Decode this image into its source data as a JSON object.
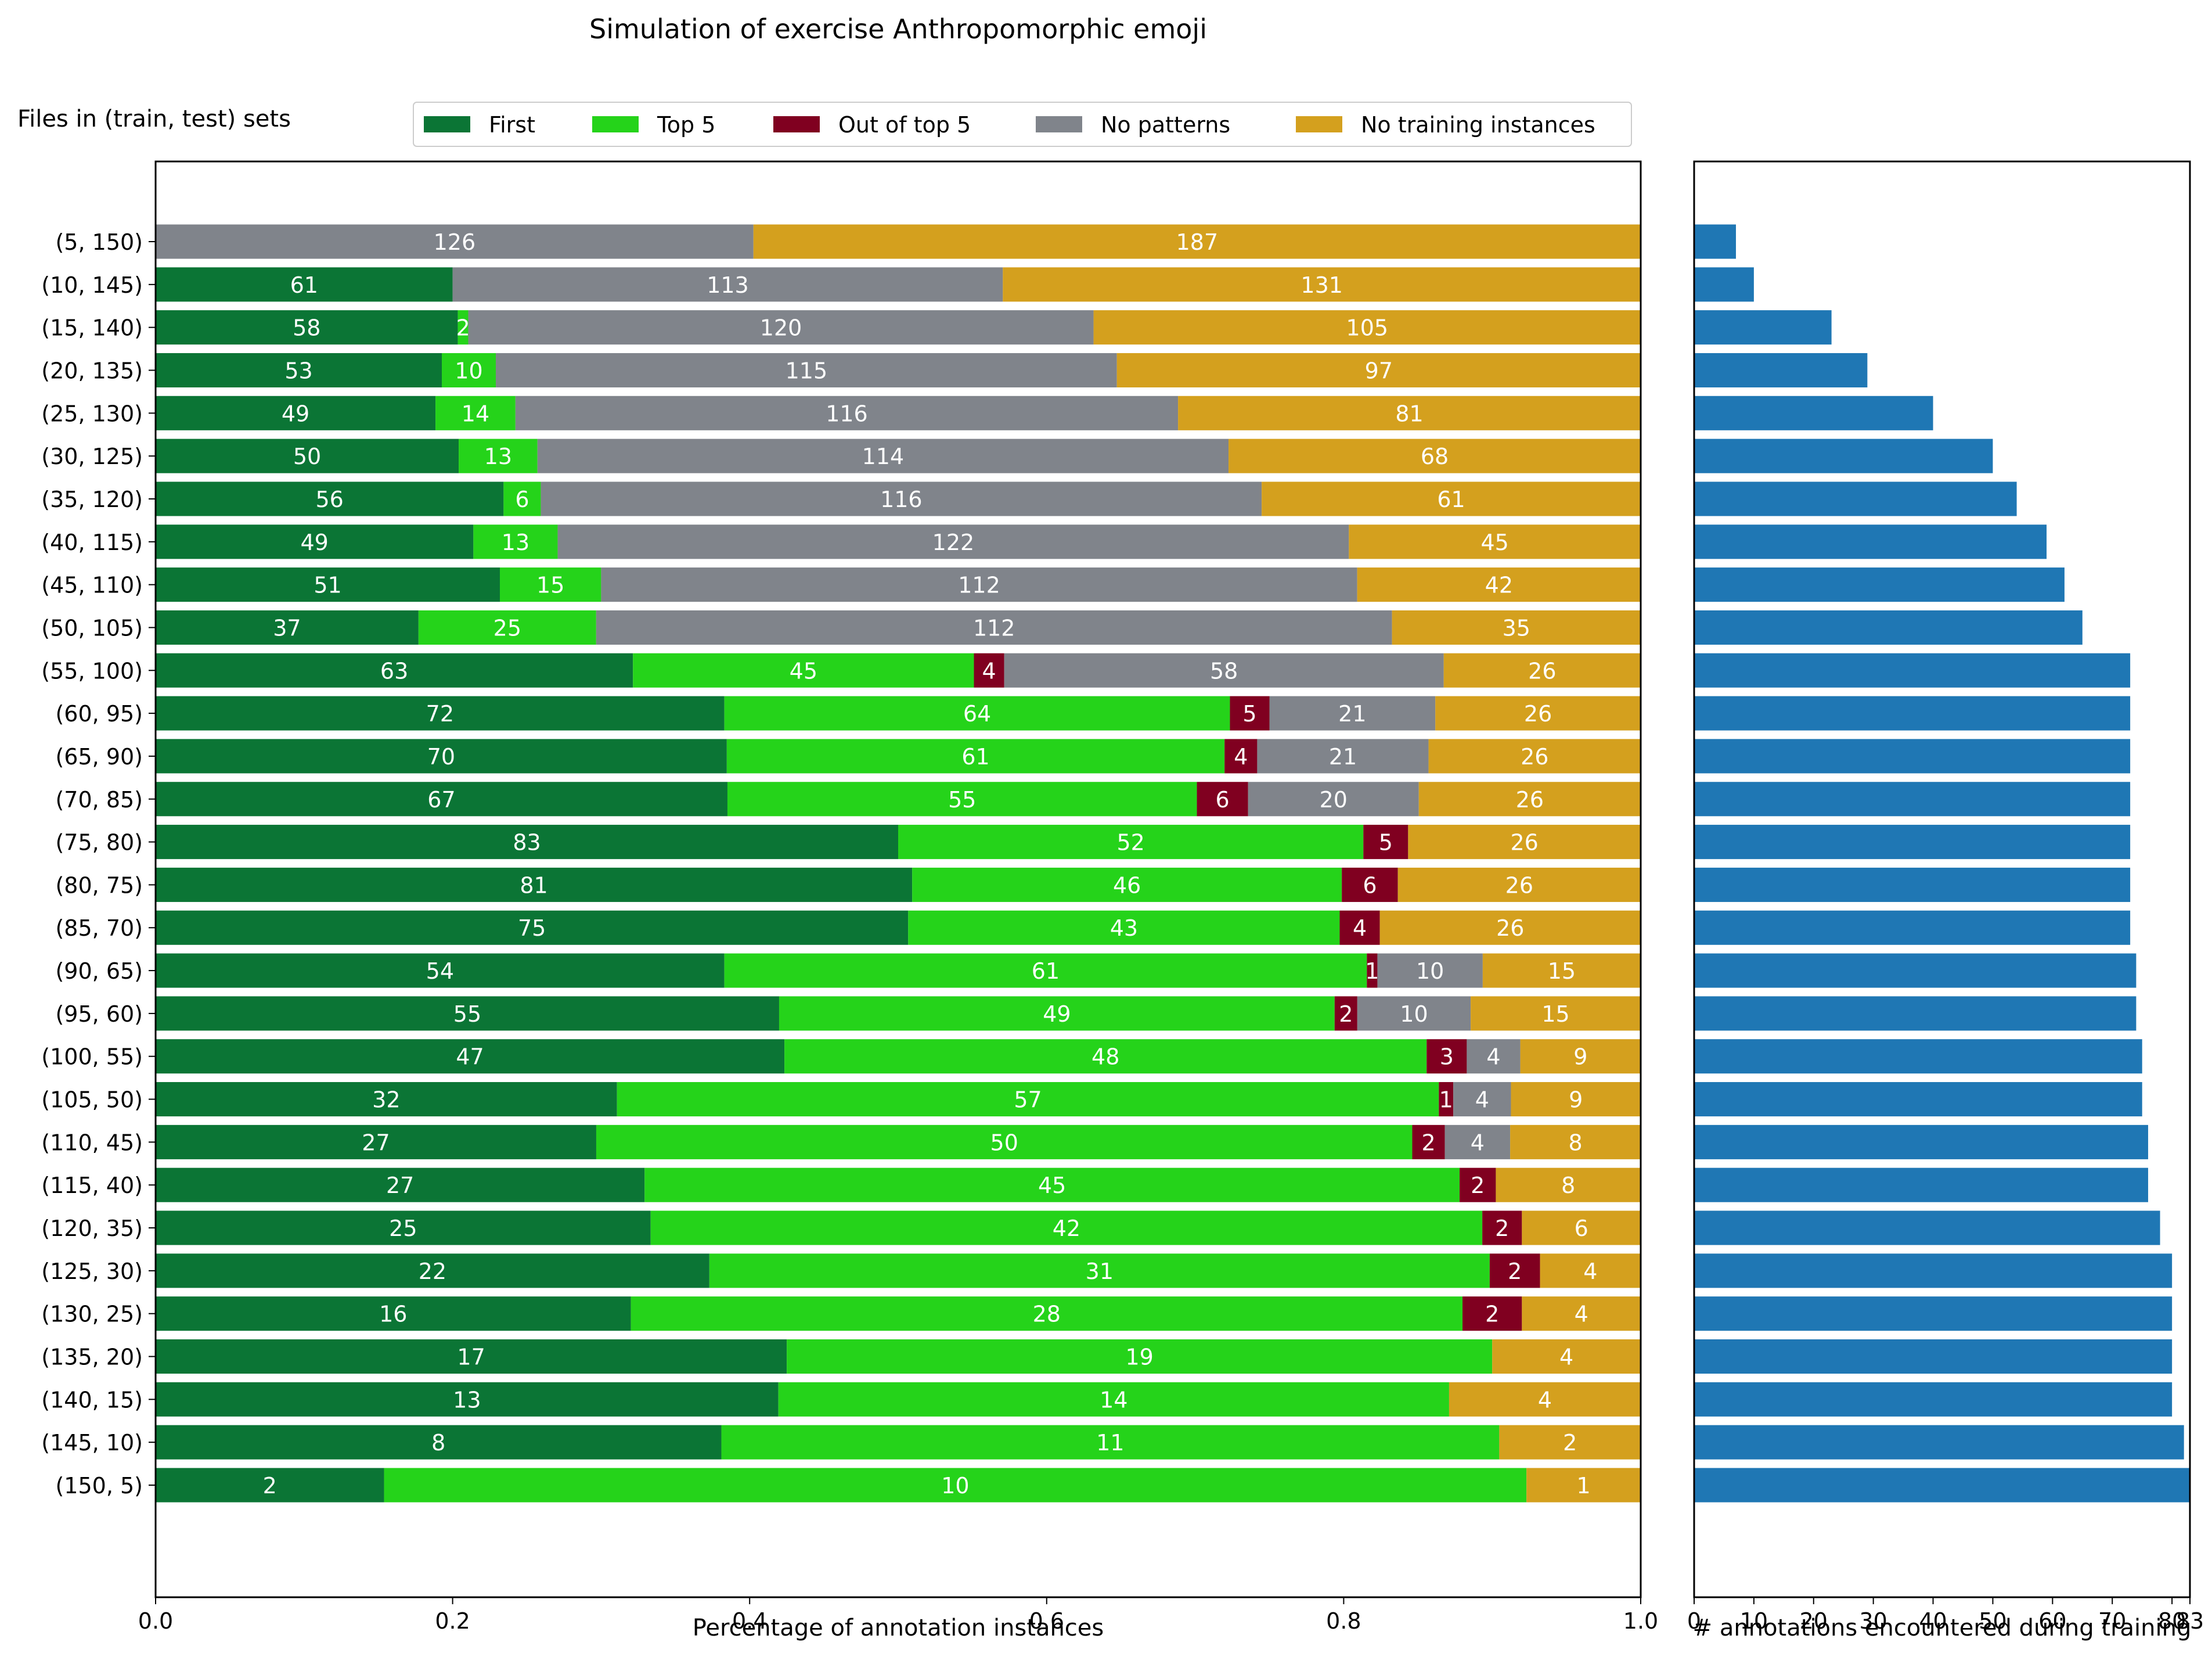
{
  "chart_data": [
    {
      "type": "bar",
      "orientation": "horizontal",
      "stacked": true,
      "normalized": true,
      "title": "Simulation of exercise Anthropomorphic emoji",
      "row_header": "Files in (train, test) sets",
      "xlabel": "Percentage of annotation instances",
      "ylabel": "",
      "xlim": [
        0,
        1
      ],
      "xticks": [
        "0.0",
        "0.2",
        "0.4",
        "0.6",
        "0.8",
        "1.0"
      ],
      "grid": false,
      "legend_position": "top",
      "categories": [
        "(5, 150)",
        "(10, 145)",
        "(15, 140)",
        "(20, 135)",
        "(25, 130)",
        "(30, 125)",
        "(35, 120)",
        "(40, 115)",
        "(45, 110)",
        "(50, 105)",
        "(55, 100)",
        "(60, 95)",
        "(65, 90)",
        "(70, 85)",
        "(75, 80)",
        "(80, 75)",
        "(85, 70)",
        "(90, 65)",
        "(95, 60)",
        "(100, 55)",
        "(105, 50)",
        "(110, 45)",
        "(115, 40)",
        "(120, 35)",
        "(125, 30)",
        "(130, 25)",
        "(135, 20)",
        "(140, 15)",
        "(145, 10)",
        "(150, 5)"
      ],
      "series": [
        {
          "name": "First",
          "color": "#0b7535",
          "values": [
            0,
            61,
            58,
            53,
            49,
            50,
            56,
            49,
            51,
            37,
            63,
            72,
            70,
            67,
            83,
            81,
            75,
            54,
            55,
            47,
            32,
            27,
            27,
            25,
            22,
            16,
            17,
            13,
            8,
            2
          ]
        },
        {
          "name": "Top 5",
          "color": "#25d31a",
          "values": [
            0,
            0,
            2,
            10,
            14,
            13,
            6,
            13,
            15,
            25,
            45,
            64,
            61,
            55,
            52,
            46,
            43,
            61,
            49,
            48,
            57,
            50,
            45,
            42,
            31,
            28,
            19,
            14,
            11,
            10
          ]
        },
        {
          "name": "Out of top 5",
          "color": "#800020",
          "values": [
            0,
            0,
            0,
            0,
            0,
            0,
            0,
            0,
            0,
            0,
            4,
            5,
            4,
            6,
            5,
            6,
            4,
            1,
            2,
            3,
            1,
            2,
            2,
            2,
            2,
            2,
            0,
            0,
            0,
            0
          ]
        },
        {
          "name": "No patterns",
          "color": "#80848b",
          "values": [
            126,
            113,
            120,
            115,
            116,
            114,
            116,
            122,
            112,
            112,
            58,
            21,
            21,
            20,
            0,
            0,
            0,
            10,
            10,
            4,
            4,
            4,
            0,
            0,
            0,
            0,
            0,
            0,
            0,
            0
          ]
        },
        {
          "name": "No training instances",
          "color": "#d4a01e",
          "values": [
            187,
            131,
            105,
            97,
            81,
            68,
            61,
            45,
            42,
            35,
            26,
            26,
            26,
            26,
            26,
            26,
            26,
            15,
            15,
            9,
            9,
            8,
            8,
            6,
            4,
            4,
            4,
            4,
            2,
            1
          ]
        }
      ]
    },
    {
      "type": "bar",
      "orientation": "horizontal",
      "xlabel": "# annotations encountered during training",
      "xlim": [
        0,
        83
      ],
      "xticks": [
        "0",
        "10",
        "20",
        "30",
        "40",
        "50",
        "60",
        "70",
        "80",
        "83"
      ],
      "color": "#1f77b4",
      "categories": [
        "(5, 150)",
        "(10, 145)",
        "(15, 140)",
        "(20, 135)",
        "(25, 130)",
        "(30, 125)",
        "(35, 120)",
        "(40, 115)",
        "(45, 110)",
        "(50, 105)",
        "(55, 100)",
        "(60, 95)",
        "(65, 90)",
        "(70, 85)",
        "(75, 80)",
        "(80, 75)",
        "(85, 70)",
        "(90, 65)",
        "(95, 60)",
        "(100, 55)",
        "(105, 50)",
        "(110, 45)",
        "(115, 40)",
        "(120, 35)",
        "(125, 30)",
        "(130, 25)",
        "(135, 20)",
        "(140, 15)",
        "(145, 10)",
        "(150, 5)"
      ],
      "values": [
        7,
        10,
        23,
        29,
        40,
        50,
        54,
        59,
        62,
        65,
        73,
        73,
        73,
        73,
        73,
        73,
        73,
        74,
        74,
        75,
        75,
        76,
        76,
        78,
        80,
        80,
        80,
        80,
        82,
        83
      ]
    }
  ]
}
